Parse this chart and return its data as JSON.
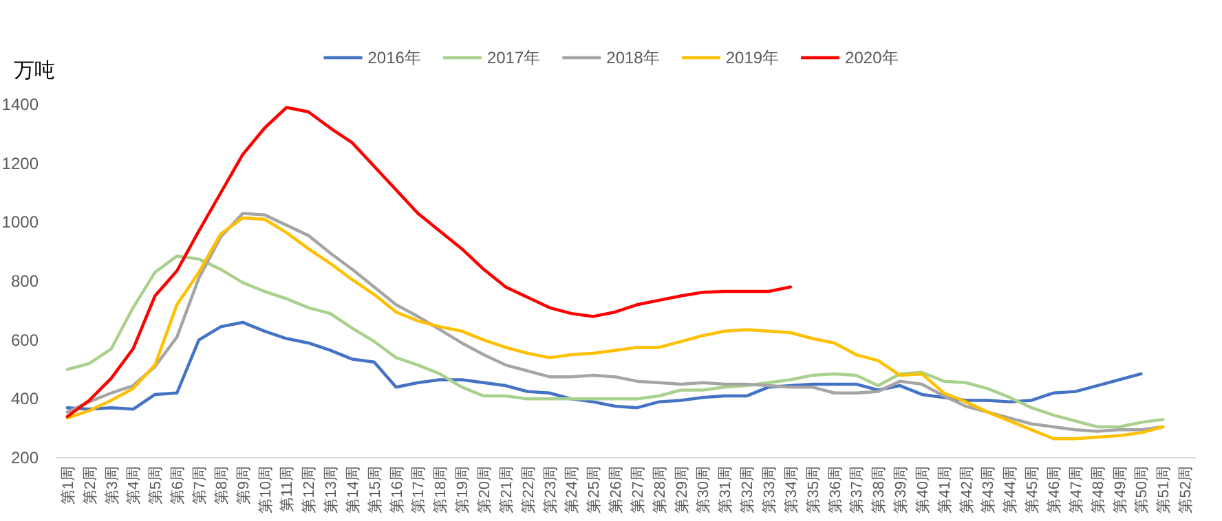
{
  "chart_data": {
    "type": "line",
    "ylabel": "万吨",
    "legend": "top",
    "grid": false,
    "marker": "none",
    "line_style": "solid",
    "categories": [
      "第1周",
      "第2周",
      "第3周",
      "第4周",
      "第5周",
      "第6周",
      "第7周",
      "第8周",
      "第9周",
      "第10周",
      "第11周",
      "第12周",
      "第13周",
      "第14周",
      "第15周",
      "第16周",
      "第17周",
      "第18周",
      "第19周",
      "第20周",
      "第21周",
      "第22周",
      "第23周",
      "第24周",
      "第25周",
      "第26周",
      "第27周",
      "第28周",
      "第29周",
      "第30周",
      "第31周",
      "第32周",
      "第33周",
      "第34周",
      "第35周",
      "第36周",
      "第37周",
      "第38周",
      "第39周",
      "第40周",
      "第41周",
      "第42周",
      "第43周",
      "第44周",
      "第45周",
      "第46周",
      "第47周",
      "第48周",
      "第49周",
      "第50周",
      "第51周",
      "第52周"
    ],
    "ylim": [
      200,
      1400
    ],
    "yticks": [
      200,
      400,
      600,
      800,
      1000,
      1200,
      1400
    ],
    "series": [
      {
        "name": "2016年",
        "color": "#4472c4",
        "values": [
          370,
          365,
          370,
          365,
          415,
          420,
          600,
          645,
          660,
          630,
          605,
          590,
          565,
          535,
          525,
          440,
          455,
          465,
          465,
          455,
          445,
          425,
          420,
          400,
          390,
          375,
          370,
          390,
          395,
          405,
          410,
          410,
          440,
          445,
          450,
          450,
          450,
          430,
          445,
          415,
          405,
          395,
          395,
          390,
          395,
          420,
          425,
          445,
          465,
          485,
          null,
          null
        ]
      },
      {
        "name": "2017年",
        "color": "#a9d18e",
        "values": [
          500,
          520,
          570,
          710,
          830,
          885,
          875,
          840,
          795,
          765,
          740,
          710,
          690,
          640,
          595,
          540,
          515,
          485,
          440,
          410,
          410,
          400,
          400,
          400,
          400,
          400,
          400,
          410,
          430,
          430,
          440,
          445,
          455,
          465,
          480,
          485,
          480,
          445,
          485,
          490,
          460,
          455,
          435,
          405,
          370,
          345,
          325,
          305,
          305,
          320,
          330,
          null
        ]
      },
      {
        "name": "2018年",
        "color": "#a5a5a5",
        "values": [
          355,
          390,
          420,
          445,
          510,
          610,
          810,
          950,
          1030,
          1025,
          990,
          955,
          895,
          840,
          780,
          720,
          680,
          635,
          590,
          550,
          515,
          495,
          475,
          475,
          480,
          475,
          460,
          455,
          450,
          455,
          450,
          450,
          445,
          440,
          440,
          420,
          420,
          425,
          460,
          450,
          410,
          375,
          355,
          335,
          315,
          305,
          295,
          290,
          295,
          295,
          305,
          null
        ]
      },
      {
        "name": "2019年",
        "color": "#ffc000",
        "values": [
          335,
          360,
          395,
          435,
          515,
          720,
          830,
          960,
          1015,
          1010,
          965,
          910,
          860,
          805,
          755,
          695,
          665,
          645,
          630,
          600,
          575,
          555,
          540,
          550,
          555,
          565,
          575,
          575,
          595,
          615,
          630,
          635,
          630,
          625,
          605,
          590,
          550,
          530,
          480,
          485,
          420,
          390,
          355,
          325,
          295,
          265,
          265,
          270,
          275,
          285,
          305,
          null
        ]
      },
      {
        "name": "2020年",
        "color": "#ff0000",
        "values": [
          340,
          395,
          470,
          570,
          750,
          835,
          970,
          1100,
          1230,
          1320,
          1390,
          1375,
          1320,
          1270,
          1190,
          1110,
          1030,
          970,
          910,
          840,
          780,
          745,
          710,
          690,
          680,
          695,
          720,
          735,
          750,
          762,
          765,
          765,
          765,
          780,
          null,
          null,
          null,
          null,
          null,
          null,
          null,
          null,
          null,
          null,
          null,
          null,
          null,
          null,
          null,
          null,
          null,
          null
        ]
      }
    ]
  }
}
